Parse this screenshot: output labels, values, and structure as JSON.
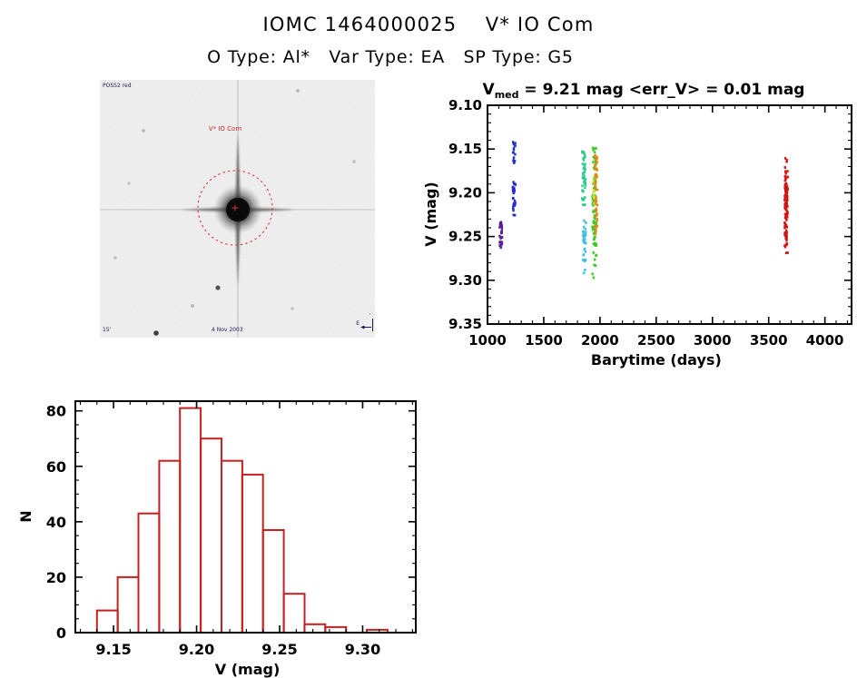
{
  "page": {
    "title": "IOMC 1464000025    V* IO Com",
    "subtitle": "O Type: Al*   Var Type: EA   SP Type: G5"
  },
  "finding_chart": {
    "target_label": "V* IO Com",
    "survey_label": "POSS2 red",
    "scale_label": "15'",
    "date_label": "4 Nov 2003",
    "east_label": "E",
    "north_tick_label": "'",
    "marker_color": "#e23333"
  },
  "chart_data": [
    {
      "type": "scatter",
      "title_v": "V",
      "title_sub": "med",
      "title_rest": " = 9.21 mag <err_V> = 0.01 mag",
      "xlabel": "Barytime (days)",
      "ylabel": "V (mag)",
      "xlim": [
        1000,
        4237
      ],
      "ylim": [
        9.1,
        9.35
      ],
      "xticks": [
        1000,
        1500,
        2000,
        2500,
        3000,
        3500,
        4000
      ],
      "yticks": [
        9.1,
        9.15,
        9.2,
        9.25,
        9.3,
        9.35
      ],
      "x_minor_step": 100,
      "y_minor_step": 0.01,
      "grid": false,
      "legend": "none",
      "clusters": [
        {
          "name": "epoch-1-purple",
          "color": "#5a1e96",
          "x": 1120,
          "x_spread": 25,
          "segments": [
            {
              "v_min": 9.233,
              "v_max": 9.248,
              "n": 13
            },
            {
              "v_min": 9.249,
              "v_max": 9.263,
              "n": 15
            }
          ]
        },
        {
          "name": "epoch-2-blue",
          "color": "#2431c8",
          "x": 1237,
          "x_spread": 25,
          "segments": [
            {
              "v_min": 9.138,
              "v_max": 9.151,
              "n": 7
            },
            {
              "v_min": 9.153,
              "v_max": 9.166,
              "n": 9
            },
            {
              "v_min": 9.187,
              "v_max": 9.203,
              "n": 14
            },
            {
              "v_min": 9.204,
              "v_max": 9.221,
              "n": 13
            },
            {
              "v_min": 9.223,
              "v_max": 9.227,
              "n": 2
            }
          ]
        },
        {
          "name": "epoch-3-teal",
          "color": "#2ecc8f",
          "x": 1856,
          "x_spread": 30,
          "segments": [
            {
              "v_min": 9.151,
              "v_max": 9.199,
              "n": 36
            },
            {
              "v_min": 9.204,
              "v_max": 9.215,
              "n": 7
            }
          ]
        },
        {
          "name": "epoch-4-cyan",
          "color": "#3ec0e0",
          "x": 1862,
          "x_spread": 28,
          "segments": [
            {
              "v_min": 9.229,
              "v_max": 9.268,
              "n": 30
            },
            {
              "v_min": 9.269,
              "v_max": 9.279,
              "n": 6
            },
            {
              "v_min": 9.287,
              "v_max": 9.292,
              "n": 2
            }
          ]
        },
        {
          "name": "epoch-5-green",
          "color": "#3ecb28",
          "x": 1950,
          "x_spread": 36,
          "segments": [
            {
              "v_min": 9.147,
              "v_max": 9.263,
              "n": 85
            },
            {
              "v_min": 9.266,
              "v_max": 9.277,
              "n": 4
            },
            {
              "v_min": 9.282,
              "v_max": 9.288,
              "n": 2
            },
            {
              "v_min": 9.292,
              "v_max": 9.297,
              "n": 2
            }
          ]
        },
        {
          "name": "epoch-6-yellow",
          "color": "#d8de2c",
          "x": 1952,
          "x_spread": 22,
          "segments": [
            {
              "v_min": 9.179,
              "v_max": 9.213,
              "n": 18
            }
          ]
        },
        {
          "name": "epoch-7-orange",
          "color": "#e0891a",
          "x": 1966,
          "x_spread": 22,
          "segments": [
            {
              "v_min": 9.157,
              "v_max": 9.252,
              "n": 48
            }
          ]
        },
        {
          "name": "epoch-8-red",
          "color": "#cf1612",
          "x": 3656,
          "x_spread": 26,
          "segments": [
            {
              "v_min": 9.159,
              "v_max": 9.166,
              "n": 3
            },
            {
              "v_min": 9.17,
              "v_max": 9.178,
              "n": 4
            },
            {
              "v_min": 9.181,
              "v_max": 9.256,
              "n": 95
            },
            {
              "v_min": 9.257,
              "v_max": 9.263,
              "n": 5
            },
            {
              "v_min": 9.267,
              "v_max": 9.271,
              "n": 2
            }
          ]
        }
      ]
    },
    {
      "type": "bar",
      "title": "",
      "xlabel": "V (mag)",
      "ylabel": "N",
      "color": "#c62020",
      "bin_start": 9.14,
      "bin_width": 0.0125,
      "counts": [
        8,
        20,
        43,
        62,
        81,
        70,
        62,
        57,
        37,
        14,
        3,
        2,
        0,
        1
      ],
      "xlim": [
        9.127,
        9.332
      ],
      "ylim": [
        0,
        83.5
      ],
      "xticks": [
        9.15,
        9.2,
        9.25,
        9.3
      ],
      "yticks": [
        0,
        20,
        40,
        60,
        80
      ],
      "x_minor_step": 0.01,
      "y_minor_step": 5,
      "grid": false
    }
  ]
}
